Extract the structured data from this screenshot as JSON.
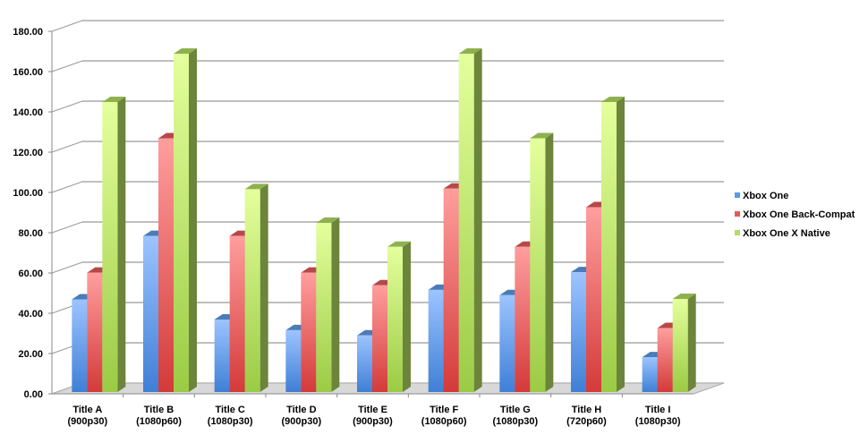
{
  "chart_data": {
    "type": "bar",
    "style": "3d-clustered-column",
    "categories": [
      "Title A\n(900p30)",
      "Title B\n(1080p60)",
      "Title C\n(1080p30)",
      "Title D\n(900p30)",
      "Title E\n(900p30)",
      "Title F\n(1080p60)",
      "Title G\n(1080p30)",
      "Title H\n(720p60)",
      "Title I\n(1080p30)"
    ],
    "series": [
      {
        "name": "Xbox One",
        "color": "#5b9be6",
        "values": [
          46,
          77.5,
          36,
          30.7,
          28.1,
          50.7,
          48.1,
          59.5,
          17.3
        ]
      },
      {
        "name": "Xbox One Back-Compat",
        "color": "#e45a5a",
        "values": [
          59.3,
          126,
          77.5,
          59.3,
          53,
          101,
          72.1,
          91.8,
          31.8
        ]
      },
      {
        "name": "Xbox One X Native",
        "color": "#b2dd62",
        "values": [
          144,
          168,
          100.7,
          84,
          72.1,
          168,
          126,
          144,
          46.2
        ]
      }
    ],
    "yticks": [
      "0.00",
      "20.00",
      "40.00",
      "60.00",
      "80.00",
      "100.00",
      "120.00",
      "140.00",
      "160.00",
      "180.00"
    ],
    "ylim": [
      0,
      180
    ],
    "grid": true,
    "legend": "right"
  }
}
